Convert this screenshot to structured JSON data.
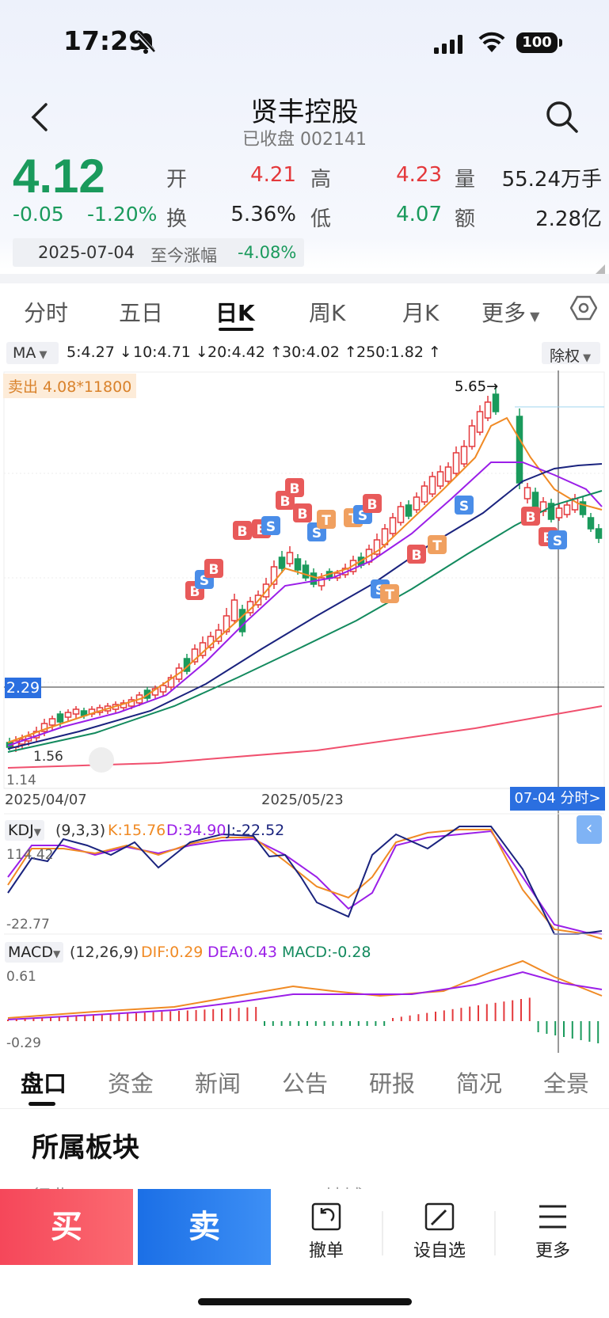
{
  "status_bar": {
    "time": "17:29",
    "battery": "100"
  },
  "header": {
    "title": "贤丰控股",
    "subtitle": "已收盘 002141"
  },
  "quote": {
    "price": "4.12",
    "change": "-0.05",
    "change_pct": "-1.20%",
    "open_label": "开",
    "open": "4.21",
    "high_label": "高",
    "high": "4.23",
    "volume_label": "量",
    "volume": "55.24万手",
    "turnover_label": "换",
    "turnover": "5.36%",
    "low_label": "低",
    "low": "4.07",
    "amount_label": "额",
    "amount": "2.28亿",
    "since_date": "2025-07-04",
    "since_label": "至今涨幅",
    "since_pct": "-4.08%"
  },
  "chart_tabs": [
    "分时",
    "五日",
    "日K",
    "周K",
    "月K",
    "更多"
  ],
  "ma": {
    "selector": "MA",
    "items": [
      {
        "text": "5:4.27 ↓",
        "color": "#f08a24"
      },
      {
        "text": "10:4.71 ↓",
        "color": "#9b1fe8"
      },
      {
        "text": "20:4.42 ↑",
        "color": "#1a237e"
      },
      {
        "text": "30:4.02 ↑",
        "color": "#138a5e"
      },
      {
        "text": "250:1.82 ↑",
        "color": "#f0506e"
      }
    ],
    "adjust": "除权"
  },
  "kline": {
    "sell_tag": "卖出 4.08*11800",
    "peak_label": "5.65→",
    "crosshair_price": "2.29",
    "low_label": "1.56",
    "axis_min": "1.14",
    "date_start": "2025/04/07",
    "date_mid": "2025/05/23",
    "selected_date": "07-04 分时>"
  },
  "kdj": {
    "selector": "KDJ",
    "params": "(9,3,3)",
    "k": "K:15.76",
    "d": "D:34.90",
    "j": "J:-22.52",
    "top": "114.42",
    "bottom": "-22.77"
  },
  "macd": {
    "selector": "MACD",
    "params": "(12,26,9)",
    "dif": "DIF:0.29",
    "dea": "DEA:0.43",
    "macd": "MACD:-0.28",
    "top": "0.61",
    "bottom": "-0.29"
  },
  "bottom_tabs": [
    "盘口",
    "资金",
    "新闻",
    "公告",
    "研报",
    "简况",
    "全景"
  ],
  "section": {
    "title": "所属板块",
    "peek_left": "行业",
    "peek_right": "地域"
  },
  "actions": {
    "buy": "买",
    "sell": "卖",
    "cancel": "撤单",
    "watchlist": "设自选",
    "more": "更多"
  },
  "colors": {
    "up": "#e4393c",
    "down": "#1a9a5c",
    "accent": "#2b6fe0"
  }
}
